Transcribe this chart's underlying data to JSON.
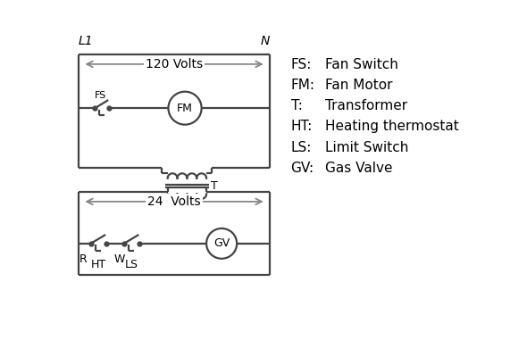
{
  "bg_color": "#ffffff",
  "line_color": "#444444",
  "arrow_color": "#888888",
  "text_color": "#000000",
  "legend": {
    "FS": "Fan Switch",
    "FM": "Fan Motor",
    "T": "Transformer",
    "HT": "Heating thermostat",
    "LS": "Limit Switch",
    "GV": "Gas Valve"
  },
  "L1_label": "L1",
  "N_label": "N",
  "v120_label": "120 Volts",
  "v24_label": "24  Volts"
}
